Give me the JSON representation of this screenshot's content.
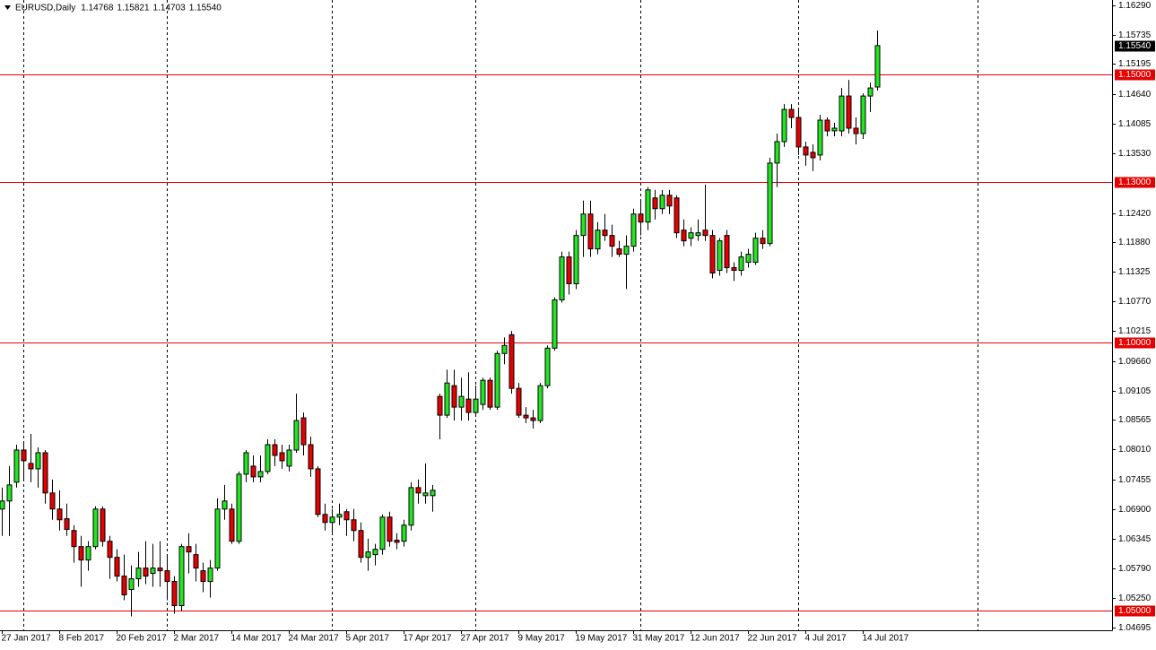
{
  "chart_data": {
    "type": "candlestick",
    "title": "EURUSD,Daily",
    "info_values": [
      "1.14768",
      "1.15821",
      "1.14703",
      "1.15540"
    ],
    "categories": [
      "27 Jan 2017",
      null,
      null,
      null,
      null,
      null,
      null,
      null,
      "8 Feb 2017",
      null,
      null,
      null,
      null,
      null,
      null,
      null,
      "20 Feb 2017",
      null,
      null,
      null,
      null,
      null,
      null,
      null,
      "2 Mar 2017",
      null,
      null,
      null,
      null,
      null,
      null,
      null,
      "14 Mar 2017",
      null,
      null,
      null,
      null,
      null,
      null,
      null,
      "24 Mar 2017",
      null,
      null,
      null,
      null,
      null,
      null,
      null,
      "5 Apr 2017",
      null,
      null,
      null,
      null,
      null,
      null,
      null,
      "17 Apr 2017",
      null,
      null,
      null,
      null,
      null,
      null,
      null,
      "27 Apr 2017",
      null,
      null,
      null,
      null,
      null,
      null,
      null,
      "9 May 2017",
      null,
      null,
      null,
      null,
      null,
      null,
      null,
      "19 May 2017",
      null,
      null,
      null,
      null,
      null,
      null,
      null,
      "31 May 2017",
      null,
      null,
      null,
      null,
      null,
      null,
      null,
      "12 Jun 2017",
      null,
      null,
      null,
      null,
      null,
      null,
      null,
      "22 Jun 2017",
      null,
      null,
      null,
      null,
      null,
      null,
      null,
      "4 Jul 2017",
      null,
      null,
      null,
      null,
      null,
      null,
      null,
      "14 Jul 2017",
      null,
      null
    ],
    "open": [
      1.069,
      1.0705,
      1.074,
      1.08,
      1.0775,
      1.0765,
      1.0795,
      1.072,
      1.069,
      1.0672,
      1.065,
      1.062,
      1.0595,
      1.062,
      1.069,
      1.063,
      1.06,
      1.0565,
      1.054,
      1.056,
      1.058,
      1.057,
      1.058,
      1.0575,
      1.0555,
      1.051,
      1.062,
      1.0605,
      1.0575,
      1.0555,
      1.058,
      1.069,
      1.069,
      1.063,
      1.0755,
      1.077,
      1.075,
      1.076,
      1.081,
      1.0795,
      1.077,
      1.08,
      1.086,
      1.081,
      1.0765,
      1.068,
      1.0665,
      1.0675,
      1.0685,
      1.067,
      1.065,
      1.06,
      1.0605,
      1.0615,
      1.0675,
      1.0632,
      1.063,
      1.066,
      1.073,
      1.0715,
      1.0715,
      1.09,
      1.0865,
      1.092,
      1.088,
      1.0895,
      1.087,
      1.0885,
      1.093,
      1.088,
      1.098,
      1.1015,
      1.0915,
      1.0865,
      1.086,
      1.0855,
      1.092,
      1.099,
      1.108,
      1.116,
      1.111,
      1.12,
      1.124,
      1.1175,
      1.121,
      1.12,
      1.1175,
      1.1165,
      1.118,
      1.124,
      1.1225,
      1.127,
      1.125,
      1.1275,
      1.127,
      1.121,
      1.1195,
      1.12,
      1.121,
      1.12,
      1.1135,
      1.12,
      1.114,
      1.1135,
      1.115,
      1.115,
      1.1195,
      1.1185,
      1.1335,
      1.1375,
      1.1435,
      1.142,
      1.1365,
      1.1355,
      1.135,
      1.1415,
      1.1395,
      1.1395,
      1.146,
      1.14,
      1.139,
      1.146,
      1.14768
    ],
    "high": [
      1.073,
      1.077,
      1.081,
      1.0815,
      1.083,
      1.0805,
      1.08,
      1.0745,
      1.0725,
      1.07,
      1.066,
      1.064,
      1.063,
      1.0695,
      1.0695,
      1.064,
      1.0615,
      1.0605,
      1.0585,
      1.061,
      1.063,
      1.0625,
      1.063,
      1.0605,
      1.0565,
      1.0625,
      1.0645,
      1.0625,
      1.059,
      1.0595,
      1.071,
      1.0735,
      1.07,
      1.076,
      1.08,
      1.079,
      1.079,
      1.082,
      1.082,
      1.081,
      1.081,
      1.0905,
      1.087,
      1.0825,
      1.077,
      1.07,
      1.069,
      1.07,
      1.069,
      1.069,
      1.0665,
      1.0635,
      1.0625,
      1.068,
      1.0685,
      1.0645,
      1.067,
      1.074,
      1.0745,
      1.0775,
      1.0735,
      1.0905,
      1.095,
      1.095,
      1.0935,
      1.0945,
      1.092,
      1.0935,
      1.0935,
      1.0985,
      1.101,
      1.1022,
      1.0925,
      1.088,
      1.0875,
      1.0925,
      1.0995,
      1.1085,
      1.117,
      1.117,
      1.121,
      1.1265,
      1.1265,
      1.1225,
      1.124,
      1.122,
      1.119,
      1.12,
      1.125,
      1.1265,
      1.129,
      1.1285,
      1.1285,
      1.1285,
      1.1275,
      1.123,
      1.1215,
      1.123,
      1.1295,
      1.121,
      1.1195,
      1.121,
      1.115,
      1.117,
      1.1175,
      1.1205,
      1.121,
      1.1345,
      1.139,
      1.1445,
      1.1445,
      1.1435,
      1.1375,
      1.137,
      1.1425,
      1.142,
      1.141,
      1.1475,
      1.149,
      1.142,
      1.1465,
      1.1485,
      1.15821
    ],
    "low": [
      1.064,
      1.064,
      1.073,
      1.0745,
      1.074,
      1.073,
      1.07,
      1.067,
      1.065,
      1.064,
      1.059,
      1.0545,
      1.0575,
      1.0615,
      1.062,
      1.056,
      1.0555,
      1.052,
      1.049,
      1.0545,
      1.055,
      1.0545,
      1.0545,
      1.052,
      1.0495,
      1.05,
      1.057,
      1.0555,
      1.0535,
      1.0525,
      1.0575,
      1.067,
      1.0625,
      1.0625,
      1.074,
      1.074,
      1.074,
      1.0755,
      1.077,
      1.0765,
      1.076,
      1.0795,
      1.079,
      1.075,
      1.0675,
      1.065,
      1.0645,
      1.066,
      1.064,
      1.063,
      1.059,
      1.0575,
      1.0585,
      1.0605,
      1.062,
      1.0615,
      1.062,
      1.065,
      1.07,
      1.07,
      1.0685,
      1.082,
      1.086,
      1.0855,
      1.0855,
      1.0855,
      1.0865,
      1.0875,
      1.0875,
      1.0875,
      1.096,
      1.0905,
      1.086,
      1.085,
      1.084,
      1.085,
      1.0915,
      1.0985,
      1.1075,
      1.109,
      1.11,
      1.116,
      1.116,
      1.1165,
      1.119,
      1.116,
      1.116,
      1.11,
      1.117,
      1.12,
      1.121,
      1.123,
      1.124,
      1.124,
      1.1195,
      1.118,
      1.118,
      1.119,
      1.119,
      1.112,
      1.1125,
      1.113,
      1.1115,
      1.1125,
      1.114,
      1.1145,
      1.1175,
      1.118,
      1.129,
      1.1365,
      1.14,
      1.135,
      1.133,
      1.132,
      1.134,
      1.1385,
      1.1385,
      1.1385,
      1.139,
      1.137,
      1.138,
      1.143,
      1.14703
    ],
    "close": [
      1.0705,
      1.0735,
      1.08,
      1.078,
      1.0765,
      1.0795,
      1.072,
      1.069,
      1.067,
      1.0652,
      1.062,
      1.0595,
      1.062,
      1.069,
      1.063,
      1.06,
      1.0565,
      1.053,
      1.056,
      1.058,
      1.0565,
      1.058,
      1.0575,
      1.0555,
      1.051,
      1.062,
      1.061,
      1.058,
      1.0555,
      1.058,
      1.069,
      1.0705,
      1.063,
      1.0755,
      1.0795,
      1.075,
      1.076,
      1.081,
      1.079,
      1.078,
      1.08,
      1.0855,
      1.081,
      1.0765,
      1.068,
      1.0665,
      1.0675,
      1.068,
      1.067,
      1.065,
      1.06,
      1.061,
      1.0615,
      1.0675,
      1.063,
      1.0628,
      1.066,
      1.073,
      1.072,
      1.072,
      1.0725,
      1.0865,
      1.0925,
      1.088,
      1.09,
      1.087,
      1.0895,
      1.093,
      1.088,
      1.098,
      1.0995,
      1.0915,
      1.0865,
      1.086,
      1.0855,
      1.092,
      1.099,
      1.108,
      1.116,
      1.111,
      1.12,
      1.124,
      1.1175,
      1.121,
      1.12,
      1.118,
      1.1165,
      1.118,
      1.124,
      1.1225,
      1.1285,
      1.125,
      1.1275,
      1.1255,
      1.1205,
      1.119,
      1.1205,
      1.1205,
      1.12,
      1.113,
      1.119,
      1.114,
      1.1135,
      1.116,
      1.1165,
      1.1195,
      1.1185,
      1.1335,
      1.1375,
      1.1435,
      1.142,
      1.1365,
      1.135,
      1.1345,
      1.1415,
      1.1395,
      1.14,
      1.146,
      1.14,
      1.139,
      1.146,
      1.1475,
      1.1554
    ],
    "up_color": "#22e622",
    "down_color": "#e60000",
    "ylim": [
      1.0464,
      1.1639
    ],
    "yticks": [
      {
        "value": 1.1629,
        "label": "1.16290"
      },
      1.15735,
      1.15195,
      {
        "value": 1.1464,
        "label": "1.14640"
      },
      1.14085,
      {
        "value": 1.1353,
        "label": "1.13530"
      },
      {
        "value": 1.1242,
        "label": "1.12420"
      },
      {
        "value": 1.1188,
        "label": "1.11880"
      },
      1.11325,
      {
        "value": 1.1077,
        "label": "1.10770"
      },
      1.10215,
      {
        "value": 1.0966,
        "label": "1.09660"
      },
      1.09105,
      1.08565,
      {
        "value": 1.0801,
        "label": "1.08010"
      },
      1.07455,
      {
        "value": 1.069,
        "label": "1.06900"
      },
      1.06345,
      {
        "value": 1.0579,
        "label": "1.05790"
      },
      {
        "value": 1.0525,
        "label": "1.05250"
      },
      1.04695
    ],
    "hlines": [
      {
        "value": 1.15,
        "label": "1.15000"
      },
      {
        "value": 1.13,
        "label": "1.13000"
      },
      {
        "value": 1.1,
        "label": "1.10000"
      },
      {
        "value": 1.05,
        "label": "1.05000"
      }
    ],
    "hline_color": "#e60000",
    "last_price": {
      "value": 1.1554,
      "label": "1.15540"
    }
  }
}
